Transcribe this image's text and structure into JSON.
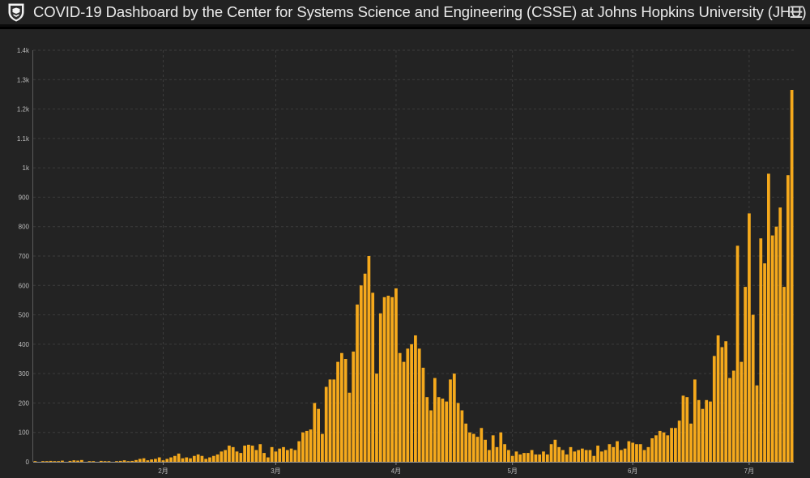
{
  "header": {
    "title": "COVID-19 Dashboard by the Center for Systems Science and Engineering (CSSE) at Johns Hopkins University (JHU)",
    "menu_icon": "hamburger-menu-icon"
  },
  "colors": {
    "bar": "#f5a91c",
    "background": "#232323",
    "header": "#222222",
    "grid": "#3c3c3c"
  },
  "chart_data": {
    "type": "bar",
    "title": "",
    "xlabel": "",
    "ylabel": "",
    "ylim": [
      0,
      1400
    ],
    "yticks": [
      0,
      100,
      200,
      300,
      400,
      500,
      600,
      700,
      800,
      900,
      1000,
      1100,
      1200,
      1300,
      1400
    ],
    "ytick_labels": [
      "0",
      "100",
      "200",
      "300",
      "400",
      "500",
      "600",
      "700",
      "800",
      "900",
      "1k",
      "1.1k",
      "1.2k",
      "1.3k",
      "1.4k"
    ],
    "xticks": [
      {
        "label": "2月",
        "index": 33
      },
      {
        "label": "3月",
        "index": 62
      },
      {
        "label": "4月",
        "index": 93
      },
      {
        "label": "5月",
        "index": 123
      },
      {
        "label": "6月",
        "index": 154
      },
      {
        "label": "7月",
        "index": 184
      }
    ],
    "grid": true,
    "values": [
      1,
      0,
      1,
      2,
      3,
      1,
      1,
      4,
      0,
      3,
      5,
      4,
      6,
      0,
      1,
      2,
      0,
      3,
      1,
      2,
      0,
      2,
      3,
      5,
      2,
      3,
      6,
      10,
      12,
      5,
      8,
      10,
      15,
      5,
      10,
      15,
      20,
      28,
      12,
      15,
      12,
      20,
      25,
      20,
      10,
      15,
      20,
      25,
      35,
      40,
      55,
      50,
      35,
      30,
      55,
      58,
      55,
      40,
      60,
      30,
      15,
      50,
      35,
      45,
      50,
      40,
      45,
      40,
      70,
      100,
      105,
      110,
      200,
      180,
      95,
      255,
      280,
      280,
      340,
      370,
      350,
      235,
      375,
      535,
      600,
      640,
      700,
      575,
      300,
      505,
      560,
      565,
      560,
      590,
      370,
      340,
      385,
      400,
      430,
      385,
      320,
      220,
      175,
      285,
      220,
      215,
      205,
      280,
      300,
      200,
      175,
      130,
      100,
      95,
      85,
      115,
      75,
      40,
      90,
      50,
      100,
      60,
      40,
      20,
      35,
      25,
      30,
      30,
      40,
      25,
      25,
      35,
      25,
      60,
      75,
      50,
      40,
      25,
      50,
      35,
      40,
      45,
      40,
      40,
      20,
      55,
      35,
      40,
      60,
      50,
      70,
      40,
      45,
      70,
      65,
      60,
      60,
      40,
      50,
      80,
      90,
      105,
      100,
      90,
      115,
      115,
      140,
      225,
      220,
      130,
      280,
      210,
      180,
      210,
      205,
      360,
      430,
      390,
      410,
      285,
      310,
      735,
      340,
      595,
      845,
      500,
      260,
      760,
      675,
      980,
      770,
      800,
      865,
      595,
      975,
      1265
    ]
  }
}
